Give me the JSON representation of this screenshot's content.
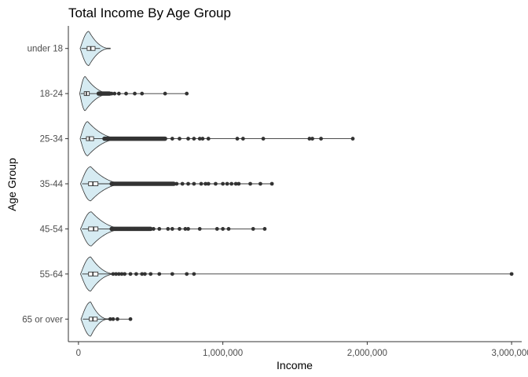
{
  "chart_data": {
    "type": "violin",
    "title": "Total Income By Age Group",
    "xlabel": "Income",
    "ylabel": "Age Group",
    "orientation": "horizontal",
    "xlim": [
      -70000,
      3070000
    ],
    "x_ticks": [
      0,
      1000000,
      2000000,
      3000000
    ],
    "x_tick_labels": [
      "0",
      "1,000,000",
      "2,000,000",
      "3,000,000"
    ],
    "grid": false,
    "fill_color": "#d6ebf2",
    "outline_color": "#333333",
    "point_color": "#333333",
    "groups": [
      {
        "category": "65 or over",
        "violin_max": 210000,
        "q1": 75000,
        "median": 100000,
        "q3": 130000,
        "whisker_low": 30000,
        "whisker_high": 360000,
        "outliers": [
          220000,
          240000,
          270000,
          360000
        ]
      },
      {
        "category": "55-64",
        "violin_max": 260000,
        "q1": 70000,
        "median": 100000,
        "q3": 135000,
        "whisker_low": 25000,
        "whisker_high": 3000000,
        "outliers": [
          240000,
          260000,
          280000,
          300000,
          320000,
          360000,
          400000,
          440000,
          460000,
          500000,
          560000,
          650000,
          750000,
          800000,
          3000000
        ]
      },
      {
        "category": "45-54",
        "violin_max": 330000,
        "q1": 70000,
        "median": 105000,
        "q3": 135000,
        "whisker_low": 25000,
        "whisker_high": 1290000,
        "outliers": [
          250000,
          300000,
          350000,
          400000,
          450000,
          480000,
          500000,
          520000,
          560000,
          620000,
          650000,
          700000,
          740000,
          760000,
          840000,
          960000,
          1000000,
          1040000,
          1210000,
          1290000
        ],
        "dense_outliers": [
          230000,
          500000
        ]
      },
      {
        "category": "35-44",
        "violin_max": 330000,
        "q1": 70000,
        "median": 100000,
        "q3": 135000,
        "whisker_low": 25000,
        "whisker_high": 1340000,
        "outliers": [
          680000,
          720000,
          760000,
          800000,
          850000,
          880000,
          900000,
          950000,
          1000000,
          1030000,
          1060000,
          1090000,
          1110000,
          1190000,
          1260000,
          1340000
        ],
        "dense_outliers": [
          230000,
          660000
        ]
      },
      {
        "category": "25-34",
        "violin_max": 300000,
        "q1": 55000,
        "median": 75000,
        "q3": 105000,
        "whisker_low": 20000,
        "whisker_high": 1900000,
        "outliers": [
          650000,
          700000,
          760000,
          800000,
          840000,
          860000,
          900000,
          1100000,
          1140000,
          1280000,
          1600000,
          1620000,
          1680000,
          1900000
        ],
        "dense_outliers": [
          180000,
          600000
        ]
      },
      {
        "category": "18-24",
        "violin_max": 230000,
        "q1": 40000,
        "median": 55000,
        "q3": 75000,
        "whisker_low": 15000,
        "whisker_high": 750000,
        "outliers": [
          230000,
          250000,
          280000,
          330000,
          390000,
          440000,
          600000,
          750000
        ],
        "dense_outliers": [
          140000,
          215000
        ]
      },
      {
        "category": "under 18",
        "violin_max": 220000,
        "q1": 60000,
        "median": 85000,
        "q3": 115000,
        "whisker_low": 20000,
        "whisker_high": 150000,
        "outliers": []
      }
    ]
  }
}
